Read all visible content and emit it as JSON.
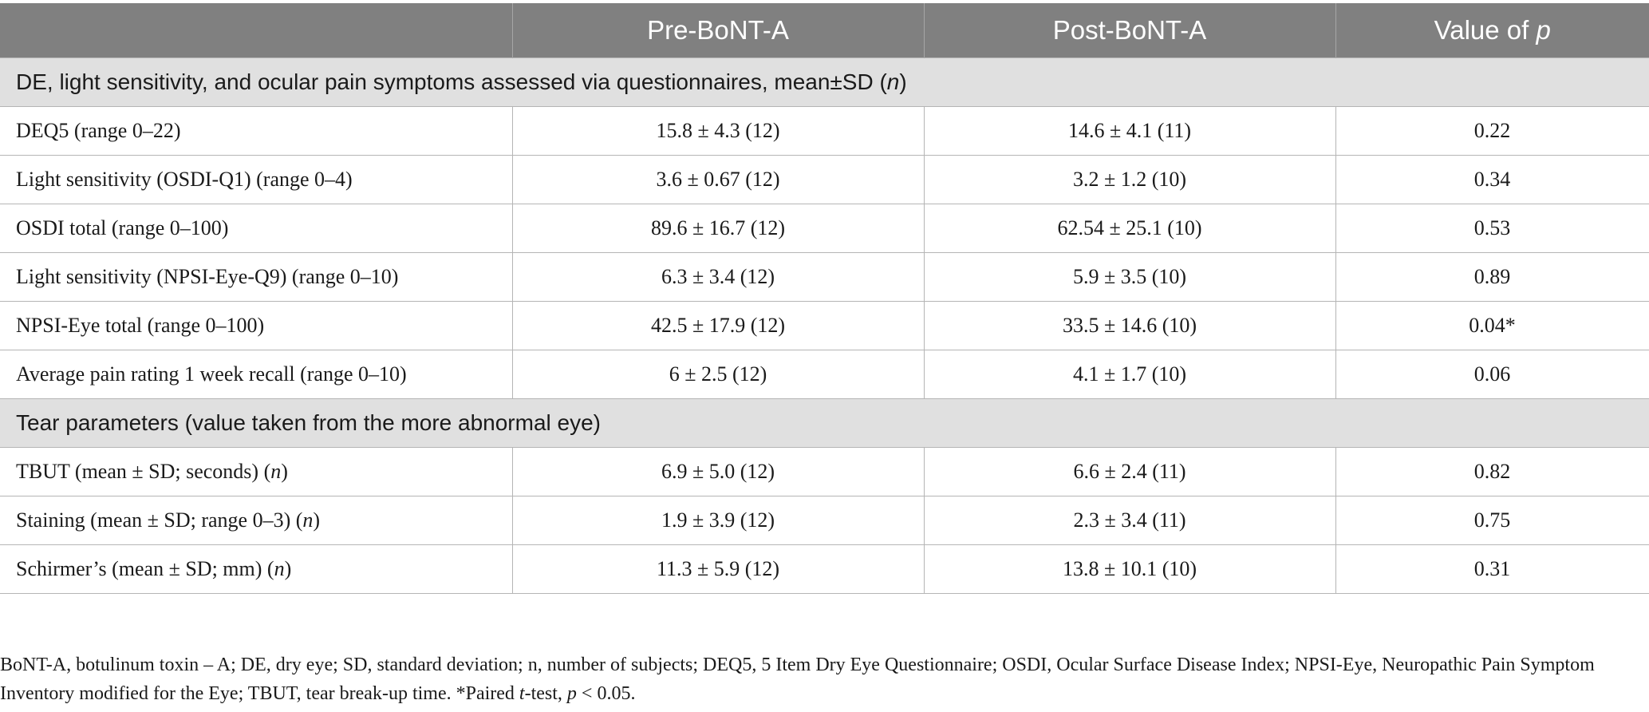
{
  "header": {
    "col1": "",
    "col2": "Pre-BoNT-A",
    "col3": "Post-BoNT-A",
    "col4_prefix": "Value of ",
    "col4_italic": "p"
  },
  "sections": [
    {
      "title_prefix": "DE, light sensitivity, and ocular pain symptoms assessed via questionnaires, mean±SD (",
      "title_italic": "n",
      "title_suffix": ")",
      "rows": [
        {
          "label": "DEQ5 (range 0–22)",
          "label_italic": "",
          "label_suffix": "",
          "pre": "15.8 ± 4.3 (12)",
          "post": "14.6 ± 4.1 (11)",
          "p": "0.22"
        },
        {
          "label": "Light sensitivity (OSDI-Q1) (range 0–4)",
          "label_italic": "",
          "label_suffix": "",
          "pre": "3.6 ± 0.67 (12)",
          "post": "3.2 ± 1.2 (10)",
          "p": "0.34"
        },
        {
          "label": "OSDI total (range 0–100)",
          "label_italic": "",
          "label_suffix": "",
          "pre": "89.6 ± 16.7 (12)",
          "post": "62.54 ± 25.1 (10)",
          "p": "0.53"
        },
        {
          "label": "Light sensitivity (NPSI-Eye-Q9) (range 0–10)",
          "label_italic": "",
          "label_suffix": "",
          "pre": "6.3 ± 3.4 (12)",
          "post": "5.9 ± 3.5 (10)",
          "p": "0.89"
        },
        {
          "label": "NPSI-Eye total (range 0–100)",
          "label_italic": "",
          "label_suffix": "",
          "pre": "42.5 ± 17.9 (12)",
          "post": "33.5 ± 14.6 (10)",
          "p": "0.04*"
        },
        {
          "label": "Average pain rating 1 week recall (range 0–10)",
          "label_italic": "",
          "label_suffix": "",
          "pre": "6 ± 2.5 (12)",
          "post": "4.1 ± 1.7 (10)",
          "p": "0.06"
        }
      ]
    },
    {
      "title_prefix": "Tear parameters (value taken from the more abnormal eye)",
      "title_italic": "",
      "title_suffix": "",
      "rows": [
        {
          "label": "TBUT (mean ± SD; seconds) (",
          "label_italic": "n",
          "label_suffix": ")",
          "pre": "6.9 ± 5.0 (12)",
          "post": "6.6 ± 2.4 (11)",
          "p": "0.82"
        },
        {
          "label": "Staining (mean ± SD; range 0–3) (",
          "label_italic": "n",
          "label_suffix": ")",
          "pre": "1.9 ± 3.9 (12)",
          "post": "2.3 ± 3.4 (11)",
          "p": "0.75"
        },
        {
          "label": "Schirmer’s (mean ± SD; mm) (",
          "label_italic": "n",
          "label_suffix": ")",
          "pre": "11.3 ± 5.9 (12)",
          "post": "13.8 ± 10.1 (10)",
          "p": "0.31"
        }
      ]
    }
  ],
  "footnote": {
    "part1": "BoNT-A, botulinum toxin – A; DE, dry eye; SD, standard deviation; n, number of subjects; DEQ5, 5 Item Dry Eye Questionnaire; OSDI, Ocular Surface Disease Index; NPSI-Eye, Neuropathic Pain Symptom Inventory modified for the Eye; TBUT, tear break-up time. *Paired ",
    "italic1": "t",
    "part2": "-test, ",
    "italic2": "p",
    "part3": " < 0.05."
  }
}
